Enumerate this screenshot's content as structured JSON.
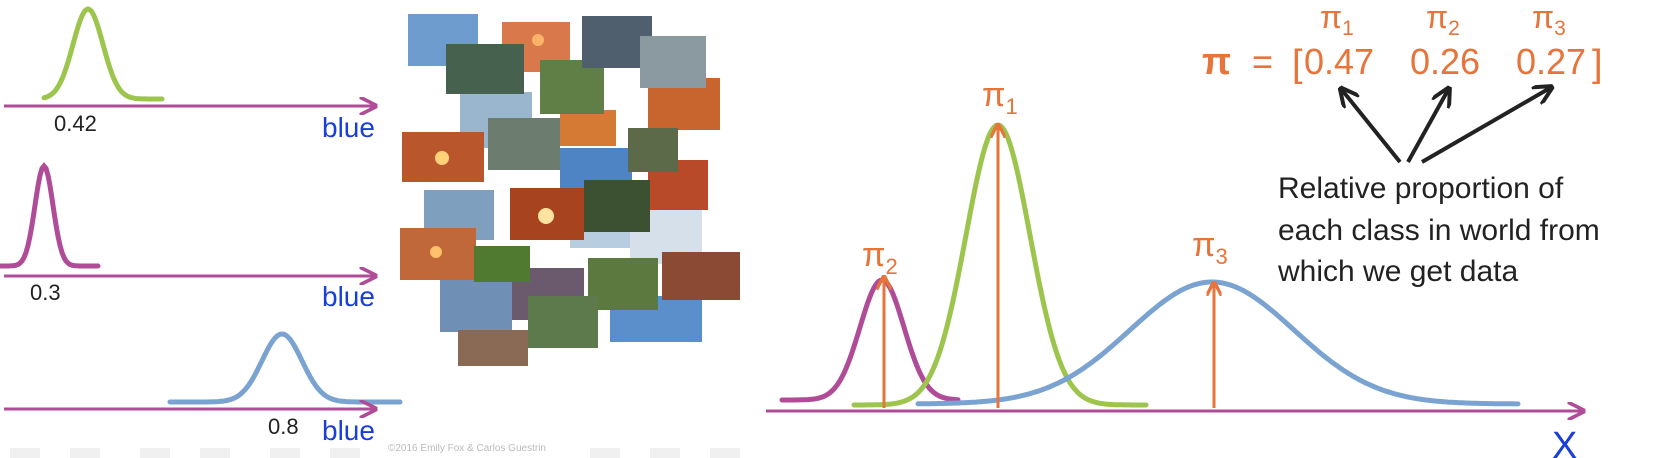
{
  "colors": {
    "green": "#9dc44d",
    "magenta": "#b04b98",
    "blue": "#7aa3d2",
    "orange": "#e6743b",
    "axis_text": "#1a3fd8",
    "dark": "#222222"
  },
  "left_panel": {
    "panels": [
      {
        "peak_label": "0.42",
        "axis_label": "blue"
      },
      {
        "peak_label": "0.3",
        "axis_label": "blue"
      },
      {
        "peak_label": "0.8",
        "axis_label": "blue"
      }
    ]
  },
  "copyright": "©2016 Emily Fox & Carlos Guestrin",
  "formula": {
    "symbol": "π",
    "equals": "=",
    "open_bracket": "[",
    "close_bracket": "]",
    "values": [
      "0.47",
      "0.26",
      "0.27"
    ],
    "headers": [
      {
        "base": "π",
        "sub": "1"
      },
      {
        "base": "π",
        "sub": "2"
      },
      {
        "base": "π",
        "sub": "3"
      }
    ]
  },
  "explanation": [
    "Relative proportion of",
    "each class in world from",
    "which we get data"
  ],
  "mixture": {
    "axis_label": "X",
    "pi_labels": [
      {
        "base": "π",
        "sub": "1"
      },
      {
        "base": "π",
        "sub": "2"
      },
      {
        "base": "π",
        "sub": "3"
      }
    ]
  }
}
